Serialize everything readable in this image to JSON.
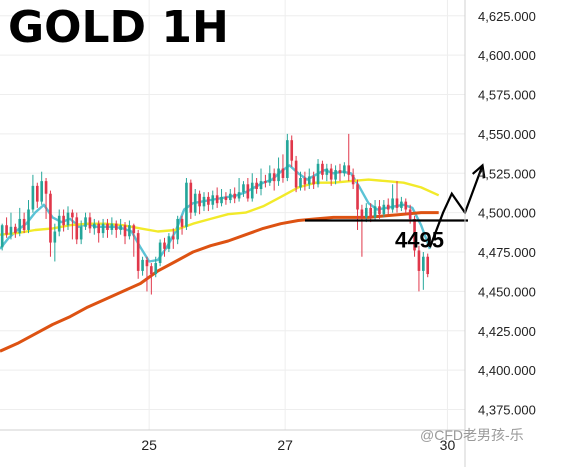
{
  "chart_data": {
    "type": "candlestick",
    "title": "GOLD 1H",
    "xlabel": "",
    "ylabel": "",
    "ylim": [
      4362,
      4635
    ],
    "yticks": [
      4375,
      4400,
      4425,
      4450,
      4475,
      4500,
      4525,
      4550,
      4575,
      4600,
      4625
    ],
    "ytick_labels": [
      "4,375.000",
      "4,400.000",
      "4,425.000",
      "4,450.000",
      "4,475.000",
      "4,500.000",
      "4,525.000",
      "4,550.000",
      "4,575.000",
      "4,600.000",
      "4,625.000"
    ],
    "xlim": [
      0,
      106
    ],
    "xticks": [
      {
        "x": 34,
        "label": "25"
      },
      {
        "x": 65,
        "label": "27"
      },
      {
        "x": 102,
        "label": "30"
      }
    ],
    "grid": true,
    "legend": "none",
    "candles": [
      [
        4478,
        4492,
        4476,
        4493
      ],
      [
        4492,
        4486,
        4484,
        4497
      ],
      [
        4486,
        4491,
        4483,
        4500
      ],
      [
        4491,
        4487,
        4484,
        4493
      ],
      [
        4487,
        4496,
        4485,
        4503
      ],
      [
        4496,
        4489,
        4487,
        4500
      ],
      [
        4489,
        4502,
        4487,
        4508
      ],
      [
        4502,
        4517,
        4500,
        4524
      ],
      [
        4517,
        4507,
        4503,
        4519
      ],
      [
        4507,
        4520,
        4505,
        4526
      ],
      [
        4520,
        4512,
        4496,
        4522
      ],
      [
        4512,
        4481,
        4472,
        4514
      ],
      [
        4481,
        4488,
        4469,
        4493
      ],
      [
        4488,
        4498,
        4485,
        4502
      ],
      [
        4498,
        4492,
        4488,
        4502
      ],
      [
        4492,
        4500,
        4489,
        4504
      ],
      [
        4500,
        4497,
        4483,
        4502
      ],
      [
        4497,
        4483,
        4480,
        4500
      ],
      [
        4483,
        4491,
        4480,
        4495
      ],
      [
        4491,
        4497,
        4489,
        4500
      ],
      [
        4497,
        4490,
        4487,
        4500
      ],
      [
        4490,
        4493,
        4486,
        4496
      ],
      [
        4493,
        4487,
        4481,
        4495
      ],
      [
        4487,
        4493,
        4484,
        4496
      ],
      [
        4493,
        4489,
        4484,
        4496
      ],
      [
        4489,
        4493,
        4486,
        4497
      ],
      [
        4493,
        4489,
        4484,
        4495
      ],
      [
        4489,
        4492,
        4486,
        4496
      ],
      [
        4492,
        4485,
        4480,
        4494
      ],
      [
        4485,
        4492,
        4483,
        4495
      ],
      [
        4492,
        4487,
        4472,
        4493
      ],
      [
        4487,
        4463,
        4458,
        4489
      ],
      [
        4463,
        4470,
        4460,
        4472
      ],
      [
        4470,
        4466,
        4450,
        4472
      ],
      [
        4466,
        4461,
        4448,
        4468
      ],
      [
        4461,
        4468,
        4459,
        4472
      ],
      [
        4468,
        4481,
        4466,
        4483
      ],
      [
        4481,
        4477,
        4472,
        4484
      ],
      [
        4477,
        4485,
        4475,
        4487
      ],
      [
        4485,
        4483,
        4477,
        4490
      ],
      [
        4483,
        4496,
        4480,
        4498
      ],
      [
        4496,
        4491,
        4486,
        4498
      ],
      [
        4491,
        4519,
        4489,
        4522
      ],
      [
        4519,
        4500,
        4496,
        4521
      ],
      [
        4500,
        4512,
        4498,
        4515
      ],
      [
        4512,
        4504,
        4499,
        4514
      ],
      [
        4504,
        4510,
        4501,
        4513
      ],
      [
        4510,
        4505,
        4501,
        4513
      ],
      [
        4505,
        4511,
        4502,
        4514
      ],
      [
        4511,
        4506,
        4503,
        4516
      ],
      [
        4506,
        4510,
        4504,
        4515
      ],
      [
        4510,
        4508,
        4505,
        4513
      ],
      [
        4508,
        4512,
        4506,
        4515
      ],
      [
        4512,
        4509,
        4506,
        4516
      ],
      [
        4509,
        4513,
        4507,
        4522
      ],
      [
        4513,
        4518,
        4510,
        4520
      ],
      [
        4518,
        4509,
        4507,
        4522
      ],
      [
        4509,
        4519,
        4507,
        4525
      ],
      [
        4519,
        4515,
        4512,
        4522
      ],
      [
        4515,
        4520,
        4511,
        4528
      ],
      [
        4520,
        4519,
        4516,
        4524
      ],
      [
        4519,
        4525,
        4517,
        4530
      ],
      [
        4525,
        4520,
        4514,
        4528
      ],
      [
        4520,
        4528,
        4517,
        4535
      ],
      [
        4528,
        4522,
        4519,
        4537
      ],
      [
        4522,
        4546,
        4520,
        4550
      ],
      [
        4546,
        4533,
        4529,
        4549
      ],
      [
        4533,
        4516,
        4513,
        4536
      ],
      [
        4516,
        4522,
        4514,
        4526
      ],
      [
        4522,
        4518,
        4514,
        4526
      ],
      [
        4518,
        4523,
        4515,
        4528
      ],
      [
        4523,
        4518,
        4515,
        4526
      ],
      [
        4518,
        4531,
        4516,
        4534
      ],
      [
        4531,
        4524,
        4521,
        4533
      ],
      [
        4524,
        4528,
        4520,
        4531
      ],
      [
        4528,
        4521,
        4517,
        4531
      ],
      [
        4521,
        4527,
        4518,
        4530
      ],
      [
        4527,
        4525,
        4520,
        4531
      ],
      [
        4525,
        4530,
        4523,
        4532
      ],
      [
        4530,
        4524,
        4520,
        4550
      ],
      [
        4524,
        4518,
        4515,
        4528
      ],
      [
        4518,
        4502,
        4489,
        4521
      ],
      [
        4502,
        4497,
        4472,
        4505
      ],
      [
        4497,
        4503,
        4494,
        4506
      ],
      [
        4503,
        4497,
        4494,
        4506
      ],
      [
        4497,
        4504,
        4495,
        4508
      ],
      [
        4504,
        4499,
        4496,
        4508
      ],
      [
        4499,
        4505,
        4497,
        4508
      ],
      [
        4505,
        4502,
        4499,
        4509
      ],
      [
        4502,
        4509,
        4500,
        4518
      ],
      [
        4509,
        4503,
        4500,
        4520
      ],
      [
        4503,
        4507,
        4501,
        4510
      ],
      [
        4507,
        4502,
        4499,
        4509
      ],
      [
        4502,
        4496,
        4493,
        4505
      ],
      [
        4496,
        4476,
        4472,
        4498
      ],
      [
        4476,
        4463,
        4450,
        4479
      ],
      [
        4463,
        4472,
        4451,
        4475
      ],
      [
        4472,
        4461,
        4459,
        4474
      ]
    ],
    "series": [
      {
        "type": "line",
        "color": "#5bc3d6",
        "values": [
          [
            0,
            4477
          ],
          [
            2,
            4484
          ],
          [
            4,
            4489
          ],
          [
            6,
            4493
          ],
          [
            8,
            4500
          ],
          [
            10,
            4505
          ],
          [
            12,
            4497
          ],
          [
            14,
            4494
          ],
          [
            16,
            4496
          ],
          [
            18,
            4491
          ],
          [
            20,
            4493
          ],
          [
            22,
            4491
          ],
          [
            24,
            4491
          ],
          [
            26,
            4491
          ],
          [
            28,
            4490
          ],
          [
            30,
            4488
          ],
          [
            32,
            4478
          ],
          [
            34,
            4469
          ],
          [
            36,
            4470
          ],
          [
            38,
            4478
          ],
          [
            40,
            4488
          ],
          [
            42,
            4502
          ],
          [
            44,
            4506
          ],
          [
            46,
            4507
          ],
          [
            48,
            4508
          ],
          [
            50,
            4509
          ],
          [
            52,
            4510
          ],
          [
            54,
            4511
          ],
          [
            56,
            4513
          ],
          [
            58,
            4516
          ],
          [
            60,
            4519
          ],
          [
            62,
            4521
          ],
          [
            64,
            4526
          ],
          [
            66,
            4530
          ],
          [
            68,
            4525
          ],
          [
            70,
            4521
          ],
          [
            72,
            4524
          ],
          [
            74,
            4527
          ],
          [
            76,
            4525
          ],
          [
            78,
            4526
          ],
          [
            80,
            4525
          ],
          [
            82,
            4516
          ],
          [
            84,
            4506
          ],
          [
            86,
            4502
          ],
          [
            88,
            4503
          ],
          [
            90,
            4504
          ],
          [
            92,
            4505
          ],
          [
            94,
            4503
          ],
          [
            96,
            4492
          ],
          [
            98,
            4477
          ]
        ]
      },
      {
        "type": "line",
        "color": "#f2ea2a",
        "values": [
          [
            0,
            4486
          ],
          [
            4,
            4487
          ],
          [
            8,
            4489
          ],
          [
            12,
            4490
          ],
          [
            16,
            4492
          ],
          [
            20,
            4493
          ],
          [
            24,
            4493
          ],
          [
            28,
            4492
          ],
          [
            32,
            4490
          ],
          [
            36,
            4488
          ],
          [
            40,
            4489
          ],
          [
            44,
            4493
          ],
          [
            48,
            4496
          ],
          [
            52,
            4499
          ],
          [
            56,
            4500
          ],
          [
            60,
            4504
          ],
          [
            64,
            4510
          ],
          [
            68,
            4516
          ],
          [
            72,
            4519
          ],
          [
            76,
            4519
          ],
          [
            80,
            4520
          ],
          [
            84,
            4521
          ],
          [
            88,
            4520
          ],
          [
            92,
            4519
          ],
          [
            96,
            4516
          ],
          [
            100,
            4511
          ]
        ]
      },
      {
        "type": "line",
        "color": "#dd5212",
        "values": [
          [
            0,
            4412
          ],
          [
            4,
            4417
          ],
          [
            8,
            4423
          ],
          [
            12,
            4429
          ],
          [
            16,
            4434
          ],
          [
            20,
            4440
          ],
          [
            24,
            4445
          ],
          [
            28,
            4450
          ],
          [
            32,
            4455
          ],
          [
            36,
            4463
          ],
          [
            40,
            4469
          ],
          [
            44,
            4475
          ],
          [
            48,
            4479
          ],
          [
            52,
            4482
          ],
          [
            56,
            4486
          ],
          [
            60,
            4490
          ],
          [
            64,
            4493
          ],
          [
            68,
            4495
          ],
          [
            72,
            4496
          ],
          [
            76,
            4497
          ],
          [
            80,
            4497
          ],
          [
            84,
            4497
          ],
          [
            88,
            4498
          ],
          [
            92,
            4499
          ],
          [
            96,
            4500
          ],
          [
            100,
            4500
          ]
        ]
      }
    ],
    "annotations": {
      "level_label": "4495",
      "level_value": 4495,
      "projection_path": [
        [
          98,
          4478
        ],
        [
          101,
          4500
        ],
        [
          103,
          4512
        ],
        [
          106,
          4500
        ],
        [
          110,
          4530
        ]
      ],
      "watermark": "@CFD老男孩-乐"
    }
  },
  "colors": {
    "up": "#24a69a",
    "down": "#e0374a",
    "ema_fast": "#5bc3d6",
    "ema_mid": "#f2ea2a",
    "ema_slow": "#dd5212",
    "grid": "#eeeeee",
    "axis_text": "#222222",
    "watermark": "#999999"
  }
}
